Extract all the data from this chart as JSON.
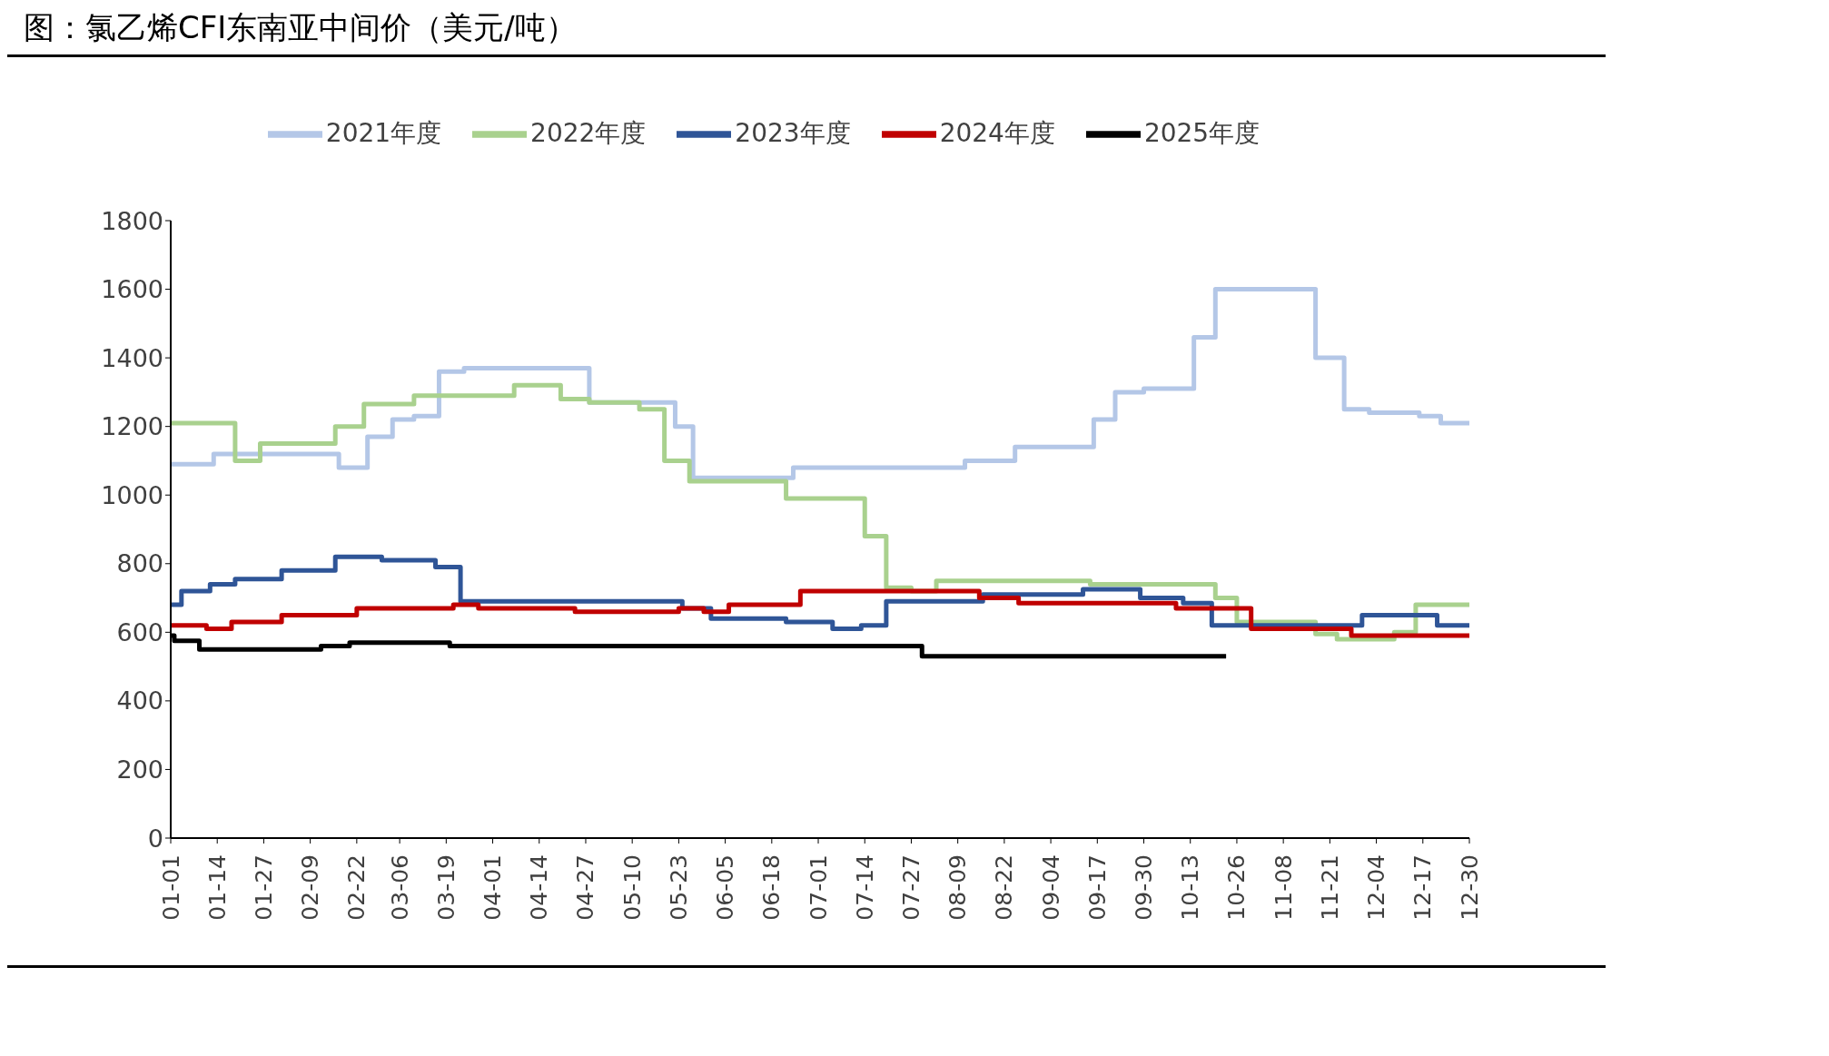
{
  "chart_data": {
    "type": "step",
    "title": "图：氯乙烯CFI东南亚中间价（美元/吨）",
    "xlim": [
      "--01-01",
      "--12-30"
    ],
    "xticks": [
      {
        "value": "--01-01",
        "label": "01-01"
      },
      {
        "value": "--01-14",
        "label": "01-14"
      },
      {
        "value": "--01-27",
        "label": "01-27"
      },
      {
        "value": "--02-09",
        "label": "02-09"
      },
      {
        "value": "--02-22",
        "label": "02-22"
      },
      {
        "value": "--03-06",
        "label": "03-06"
      },
      {
        "value": "--03-19",
        "label": "03-19"
      },
      {
        "value": "--04-01",
        "label": "04-01"
      },
      {
        "value": "--04-14",
        "label": "04-14"
      },
      {
        "value": "--04-27",
        "label": "04-27"
      },
      {
        "value": "--05-10",
        "label": "05-10"
      },
      {
        "value": "--05-23",
        "label": "05-23"
      },
      {
        "value": "--06-05",
        "label": "06-05"
      },
      {
        "value": "--06-18",
        "label": "06-18"
      },
      {
        "value": "--07-01",
        "label": "07-01"
      },
      {
        "value": "--07-14",
        "label": "07-14"
      },
      {
        "value": "--07-27",
        "label": "07-27"
      },
      {
        "value": "--08-09",
        "label": "08-09"
      },
      {
        "value": "--08-22",
        "label": "08-22"
      },
      {
        "value": "--09-04",
        "label": "09-04"
      },
      {
        "value": "--09-17",
        "label": "09-17"
      },
      {
        "value": "--09-30",
        "label": "09-30"
      },
      {
        "value": "--10-13",
        "label": "10-13"
      },
      {
        "value": "--10-26",
        "label": "10-26"
      },
      {
        "value": "--11-08",
        "label": "11-08"
      },
      {
        "value": "--11-21",
        "label": "11-21"
      },
      {
        "value": "--12-04",
        "label": "12-04"
      },
      {
        "value": "--12-17",
        "label": "12-17"
      },
      {
        "value": "--12-30",
        "label": "12-30"
      }
    ],
    "ylim": [
      0,
      1800
    ],
    "yticks": [
      0,
      200,
      400,
      600,
      800,
      1000,
      1200,
      1400,
      1600,
      1800
    ],
    "grid": false,
    "legend": "top",
    "line_style": "solid",
    "marker": "none",
    "series": [
      {
        "name": "2021年度",
        "color": "#b4c7e7",
        "x": [
          "--01-01",
          "--01-13",
          "--02-17",
          "--02-25",
          "--03-04",
          "--03-10",
          "--03-17",
          "--03-24",
          "--04-28",
          "--05-22",
          "--05-27",
          "--06-24",
          "--08-11",
          "--08-25",
          "--09-16",
          "--09-22",
          "--09-30",
          "--10-14",
          "--10-20",
          "--11-17",
          "--11-25",
          "--12-02",
          "--12-16",
          "--12-22",
          "--12-30"
        ],
        "values": [
          1090,
          1120,
          1080,
          1170,
          1220,
          1230,
          1360,
          1370,
          1270,
          1200,
          1050,
          1080,
          1100,
          1140,
          1220,
          1300,
          1310,
          1460,
          1600,
          1400,
          1250,
          1240,
          1230,
          1210,
          1210
        ]
      },
      {
        "name": "2022年度",
        "color": "#a9d18e",
        "x": [
          "--01-01",
          "--01-19",
          "--01-26",
          "--02-16",
          "--02-24",
          "--03-10",
          "--04-07",
          "--04-20",
          "--04-28",
          "--05-12",
          "--05-19",
          "--05-26",
          "--06-22",
          "--07-14",
          "--07-20",
          "--07-27",
          "--08-03",
          "--09-15",
          "--10-20",
          "--10-26",
          "--11-17",
          "--11-23",
          "--12-09",
          "--12-15",
          "--12-30"
        ],
        "values": [
          1210,
          1100,
          1150,
          1200,
          1265,
          1290,
          1320,
          1280,
          1270,
          1250,
          1100,
          1040,
          990,
          880,
          730,
          720,
          750,
          740,
          700,
          630,
          595,
          580,
          600,
          680,
          680
        ]
      },
      {
        "name": "2023年度",
        "color": "#2f5597",
        "x": [
          "--01-01",
          "--01-04",
          "--01-12",
          "--01-19",
          "--02-01",
          "--02-16",
          "--03-01",
          "--03-16",
          "--03-23",
          "--05-24",
          "--06-01",
          "--06-22",
          "--07-05",
          "--07-13",
          "--07-20",
          "--08-16",
          "--09-13",
          "--09-29",
          "--10-11",
          "--10-19",
          "--11-30",
          "--12-21",
          "--12-30"
        ],
        "values": [
          680,
          720,
          740,
          755,
          780,
          820,
          810,
          790,
          690,
          670,
          640,
          630,
          610,
          620,
          690,
          710,
          725,
          700,
          685,
          620,
          650,
          620,
          620
        ]
      },
      {
        "name": "2024年度",
        "color": "#c00000",
        "x": [
          "--01-01",
          "--01-11",
          "--01-18",
          "--02-01",
          "--02-22",
          "--03-21",
          "--03-28",
          "--04-24",
          "--05-23",
          "--05-30",
          "--06-06",
          "--06-26",
          "--08-15",
          "--08-26",
          "--10-09",
          "--10-30",
          "--11-27",
          "--12-30"
        ],
        "values": [
          620,
          610,
          630,
          650,
          670,
          680,
          670,
          660,
          670,
          660,
          680,
          720,
          700,
          685,
          670,
          610,
          590,
          590
        ]
      },
      {
        "name": "2025年度",
        "color": "#000000",
        "x": [
          "--01-01",
          "--01-02",
          "--01-09",
          "--02-12",
          "--02-20",
          "--03-20",
          "--07-30",
          "--10-23"
        ],
        "values": [
          590,
          575,
          550,
          560,
          570,
          560,
          530,
          530
        ]
      }
    ]
  }
}
